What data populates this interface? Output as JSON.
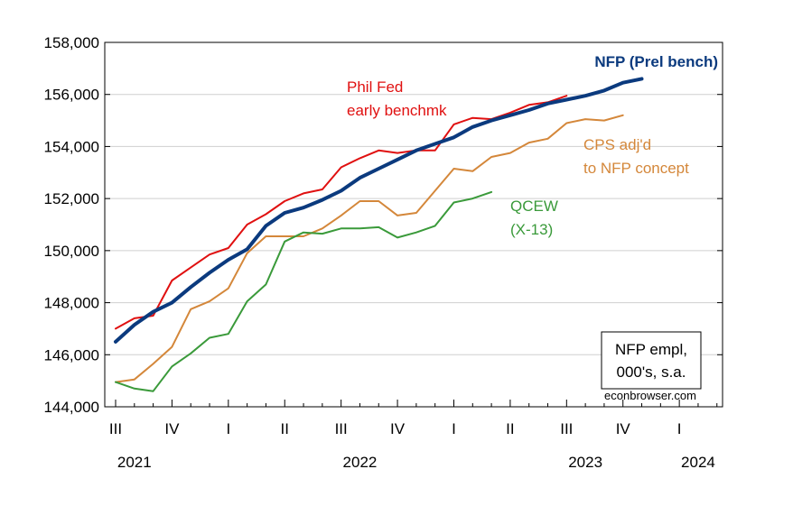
{
  "chart_data": {
    "type": "line",
    "title": "",
    "xlabel": "",
    "ylabel": "",
    "ylim": [
      144000,
      158000
    ],
    "y_ticks": [
      144000,
      146000,
      148000,
      150000,
      152000,
      154000,
      156000,
      158000
    ],
    "y_tick_labels": [
      "144,000",
      "146,000",
      "148,000",
      "150,000",
      "152,000",
      "154,000",
      "156,000",
      "158,000"
    ],
    "grid": true,
    "x_ticks": [
      {
        "label": "III",
        "month": "2021-07"
      },
      {
        "label": "IV",
        "month": "2021-10"
      },
      {
        "label": "I",
        "month": "2022-01"
      },
      {
        "label": "II",
        "month": "2022-04"
      },
      {
        "label": "III",
        "month": "2022-07"
      },
      {
        "label": "IV",
        "month": "2022-10"
      },
      {
        "label": "I",
        "month": "2023-01"
      },
      {
        "label": "II",
        "month": "2023-04"
      },
      {
        "label": "III",
        "month": "2023-07"
      },
      {
        "label": "IV",
        "month": "2023-10"
      },
      {
        "label": "I",
        "month": "2024-01"
      }
    ],
    "x_years": [
      {
        "label": "2021",
        "month": "2021-08"
      },
      {
        "label": "2022",
        "month": "2022-08"
      },
      {
        "label": "2023",
        "month": "2023-08"
      },
      {
        "label": "2024",
        "month": "2024-02"
      }
    ],
    "x_range": [
      "2021-07",
      "2024-03"
    ],
    "series": [
      {
        "name": "NFP (Prel bench)",
        "color": "#0b3a7e",
        "width": 4,
        "label_lines": [
          "NFP (Prel bench)"
        ],
        "label_bold": true,
        "start": "2021-07",
        "values": [
          146500,
          147150,
          147650,
          148000,
          148600,
          149150,
          149650,
          150050,
          150950,
          151450,
          151650,
          151950,
          152300,
          152800,
          153150,
          153500,
          153850,
          154100,
          154350,
          154750,
          155000,
          155200,
          155400,
          155650,
          155800,
          155950,
          156150,
          156450,
          156600
        ]
      },
      {
        "name": "Phil Fed early benchmk",
        "color": "#e01010",
        "width": 2,
        "label_lines": [
          "Phil Fed",
          "early benchmk"
        ],
        "label_bold": false,
        "start": "2021-07",
        "values": [
          147000,
          147400,
          147500,
          148850,
          149350,
          149850,
          150100,
          151000,
          151400,
          151900,
          152200,
          152350,
          153200,
          153550,
          153850,
          153750,
          153850,
          153850,
          154850,
          155100,
          155050,
          155300,
          155600,
          155700,
          155950
        ]
      },
      {
        "name": "CPS adj'd to NFP concept",
        "color": "#d4873a",
        "width": 2,
        "label_lines": [
          "CPS adj'd",
          "to NFP concept"
        ],
        "label_bold": false,
        "start": "2021-07",
        "values": [
          144950,
          145050,
          145650,
          146300,
          147750,
          148050,
          148550,
          149900,
          150550,
          150550,
          150550,
          150850,
          151350,
          151900,
          151900,
          151350,
          151450,
          152300,
          153150,
          153050,
          153600,
          153750,
          154150,
          154300,
          154900,
          155050,
          155000,
          155200
        ]
      },
      {
        "name": "QCEW (X-13)",
        "color": "#3a9a3a",
        "width": 2,
        "label_lines": [
          "QCEW",
          "(X-13)"
        ],
        "label_bold": false,
        "start": "2021-07",
        "values": [
          144950,
          144700,
          144600,
          145550,
          146050,
          146650,
          146800,
          148050,
          148700,
          150350,
          150700,
          150650,
          150850,
          150850,
          150900,
          150500,
          150700,
          150950,
          151850,
          152000,
          152250
        ]
      }
    ],
    "note_lines": [
      "NFP empl,",
      "000's, s.a."
    ],
    "credit": "econbrowser.com"
  }
}
